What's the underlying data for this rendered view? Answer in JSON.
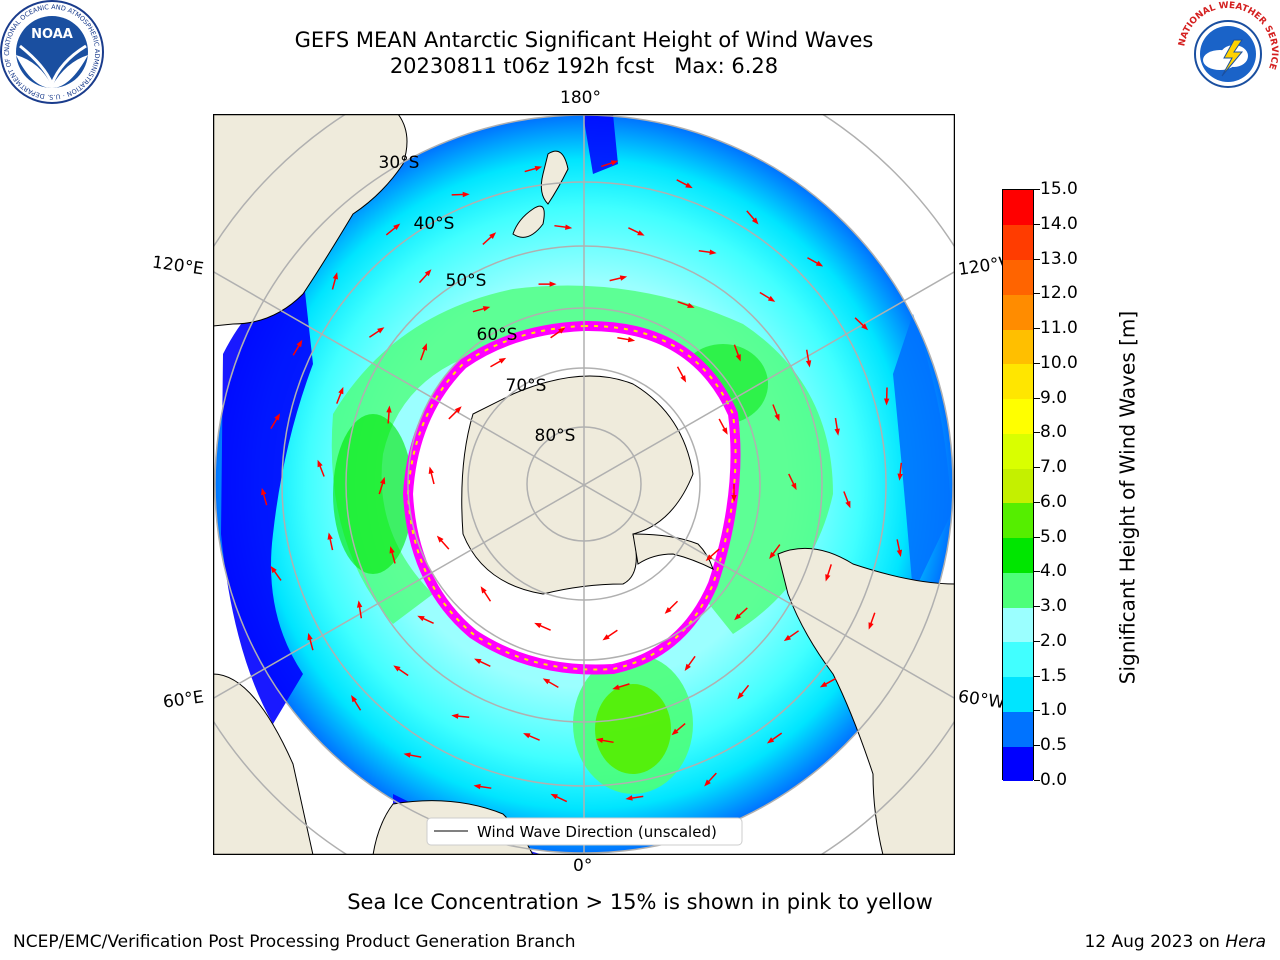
{
  "header": {
    "title_line1": "GEFS MEAN Antarctic Significant Height of Wind Waves",
    "title_line2": "20230811 t06z 192h fcst   Max: 6.28"
  },
  "logos": {
    "noaa_text": "NOAA",
    "noaa_ring_text": "NATIONAL OCEANIC AND ATMOSPHERIC ADMINISTRATION · U.S. DEPARTMENT OF COMMERCE",
    "nws_ring_text": "NATIONAL WEATHER SERVICE"
  },
  "map": {
    "longitude_labels": {
      "top": "180°",
      "bottom": "0°",
      "upper_left": "120°E",
      "upper_right": "120°W",
      "lower_left": "60°E",
      "lower_right": "60°W"
    },
    "latitude_labels": [
      "30°S",
      "40°S",
      "50°S",
      "60°S",
      "70°S",
      "80°S"
    ],
    "legend_label": "Wind Wave Direction (unscaled)",
    "colors": {
      "land": "#efebdc",
      "ocean_low": "#0000ff",
      "arrows": "#ff0000",
      "sea_ice_edge": "#ff00ff",
      "grid": "#b0b0b0"
    }
  },
  "colorbar": {
    "label": "Significant Height of Wind Waves [m]",
    "ticks": [
      "0.0",
      "0.5",
      "1.0",
      "1.5",
      "2.0",
      "3.0",
      "4.0",
      "5.0",
      "6.0",
      "7.0",
      "8.0",
      "9.0",
      "10.0",
      "11.0",
      "12.0",
      "13.0",
      "14.0",
      "15.0"
    ],
    "colors": [
      "#0000ff",
      "#0073ff",
      "#00e5ff",
      "#41ffff",
      "#9bffff",
      "#4dff7a",
      "#00e600",
      "#55ee00",
      "#c4f000",
      "#d9ff00",
      "#ffff00",
      "#ffe600",
      "#ffbf00",
      "#ff8c00",
      "#ff6400",
      "#ff3c00",
      "#ff0000"
    ]
  },
  "footer": {
    "note": "Sea Ice Concentration > 15% is shown in pink to yellow",
    "credit": "NCEP/EMC/Verification Post Processing Product Generation Branch",
    "date": "12 Aug 2023 on",
    "machine": "Hera"
  }
}
